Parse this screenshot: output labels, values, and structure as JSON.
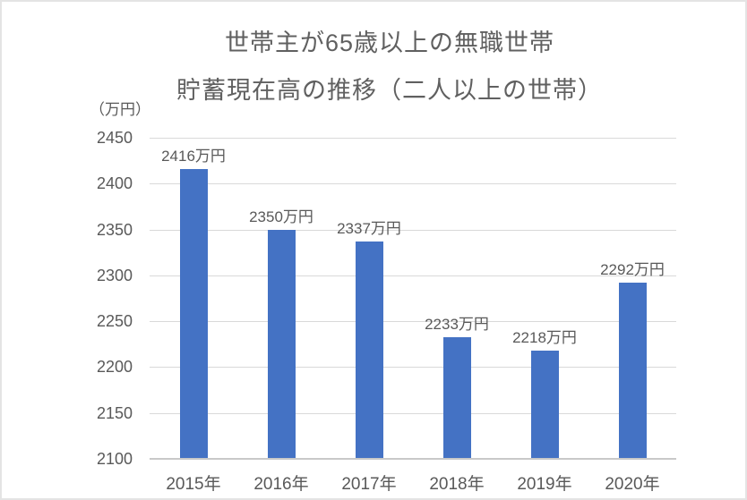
{
  "chart_data": {
    "type": "bar",
    "title_lines": [
      "世帯主が65歳以上の無職世帯",
      "貯蓄現在高の推移（二人以上の世帯）"
    ],
    "unit_label": "（万円）",
    "categories": [
      "2015年",
      "2016年",
      "2017年",
      "2018年",
      "2019年",
      "2020年"
    ],
    "values": [
      2416,
      2350,
      2337,
      2233,
      2218,
      2292
    ],
    "data_labels": [
      "2416万円",
      "2350万円",
      "2337万円",
      "2233万円",
      "2218万円",
      "2292万円"
    ],
    "xlabel": "",
    "ylabel": "（万円）",
    "ylim": [
      2100,
      2450
    ],
    "ytick_step": 50,
    "yticks": [
      2450,
      2400,
      2350,
      2300,
      2250,
      2200,
      2150,
      2100
    ],
    "grid": true,
    "legend_position": "none",
    "bar_color": "#4472C4",
    "gridline_color": "#d9d9d9",
    "axis_line_color": "#c9c9c9",
    "text_color": "#595959",
    "title_color": "#606060",
    "background_color": "#ffffff"
  }
}
